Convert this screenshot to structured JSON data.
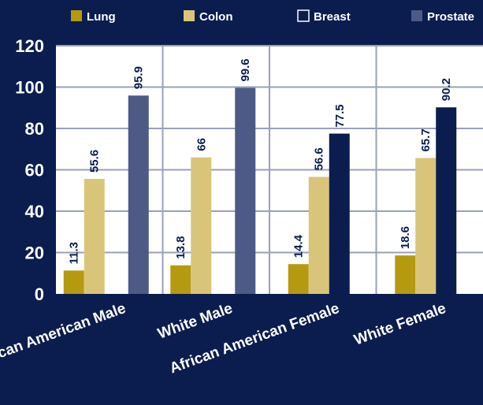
{
  "chart_data": {
    "type": "bar",
    "title": "",
    "xlabel": "",
    "ylabel": "",
    "ylim": [
      0,
      120
    ],
    "yticks": [
      0,
      20,
      40,
      60,
      80,
      100,
      120
    ],
    "categories": [
      "African American Male",
      "White Male",
      "African American Female",
      "White Female"
    ],
    "series": [
      {
        "name": "Lung",
        "color": "#b59a10",
        "values": [
          11.3,
          13.8,
          14.4,
          18.6
        ]
      },
      {
        "name": "Colon",
        "color": "#d9c57a",
        "values": [
          55.6,
          66,
          56.6,
          65.7
        ]
      },
      {
        "name": "Breast",
        "color": "#0b1d4e",
        "values": [
          null,
          null,
          77.5,
          90.2
        ]
      },
      {
        "name": "Prostate",
        "color": "#4e5a86",
        "values": [
          95.9,
          99.6,
          null,
          null
        ]
      }
    ],
    "grid": true,
    "legend_position": "top",
    "colors": {
      "background": "#0b1d4e",
      "plot_background": "#ffffff",
      "grid": "#9aa1b8"
    }
  }
}
